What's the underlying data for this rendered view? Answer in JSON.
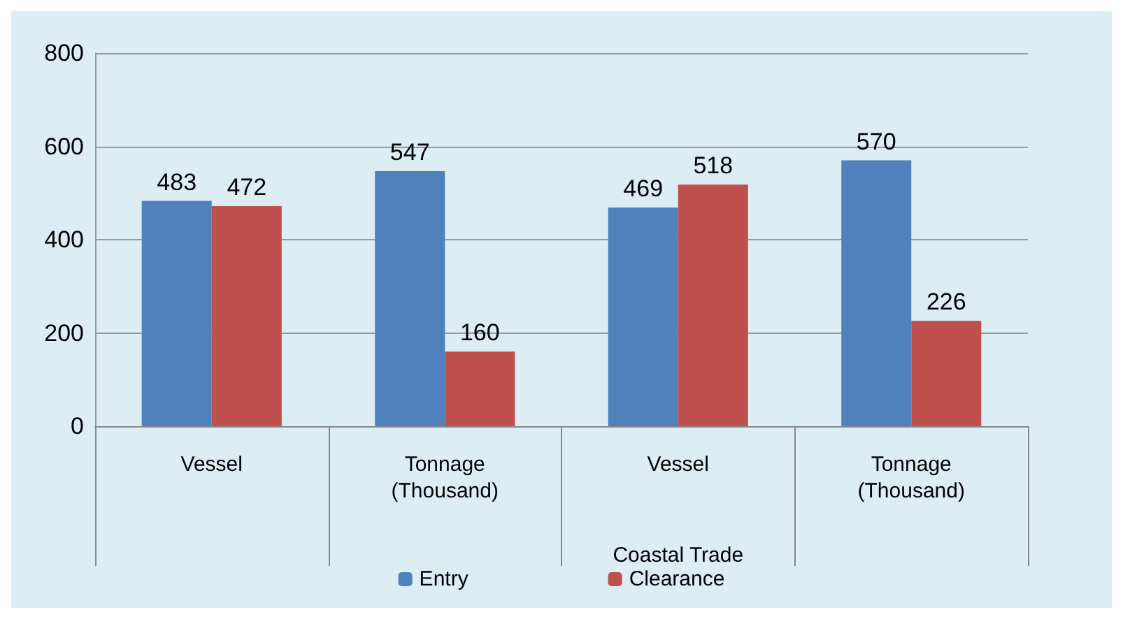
{
  "chart_data": {
    "type": "bar",
    "categories": [
      "Vessel",
      "Tonnage\n(Thousand)",
      "Vessel",
      "Tonnage\n(Thousand)"
    ],
    "series": [
      {
        "name": "Entry",
        "color": "#4f81bd",
        "values": [
          483,
          547,
          469,
          570
        ]
      },
      {
        "name": "Clearance",
        "color": "#c0504d",
        "values": [
          472,
          160,
          518,
          226
        ]
      }
    ],
    "ylim": [
      0,
      800
    ],
    "yticks": [
      0,
      200,
      400,
      600,
      800
    ],
    "grid": "y",
    "legend": "bottom",
    "data_labels": true,
    "annotations": [
      "Coastal Trade"
    ]
  }
}
